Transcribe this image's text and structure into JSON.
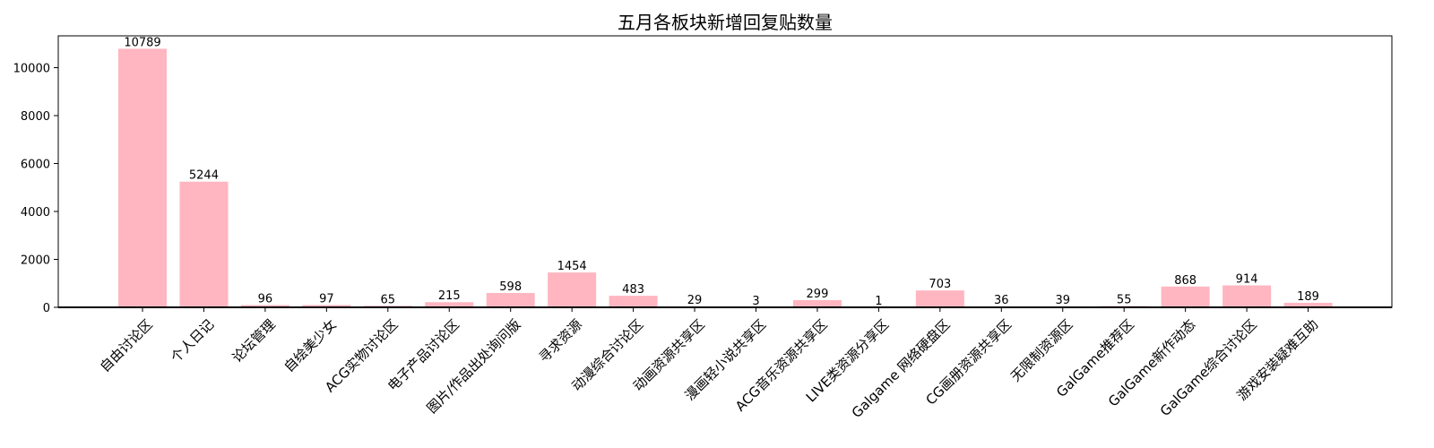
{
  "chart_data": {
    "type": "bar",
    "title": "五月各板块新增回复贴数量",
    "xlabel": "",
    "ylabel": "",
    "categories": [
      "自由讨论区",
      "个人日记",
      "论坛管理",
      "自绘美少女",
      "ACG实物讨论区",
      "电子产品讨论区",
      "图片/作品出处询问版",
      "寻求资源",
      "动漫综合讨论区",
      "动画资源共享区",
      "漫画轻小说共享区",
      "ACG音乐资源共享区",
      "LIVE类资源分享区",
      "Galgame 网络硬盘区",
      "CG画册资源共享区",
      "无限制资源区",
      "GalGame推荐区",
      "GalGame新作动态",
      "GalGame综合讨论区",
      "游戏安装疑难互助"
    ],
    "values": [
      10789,
      5244,
      96,
      97,
      65,
      215,
      598,
      1454,
      483,
      29,
      3,
      299,
      1,
      703,
      36,
      39,
      55,
      868,
      914,
      189
    ],
    "ylim": [
      0,
      11328
    ],
    "yticks": [
      0,
      2000,
      4000,
      6000,
      8000,
      10000
    ],
    "data_labels": true,
    "grid": false,
    "bar_color": "#ffb6c1"
  }
}
